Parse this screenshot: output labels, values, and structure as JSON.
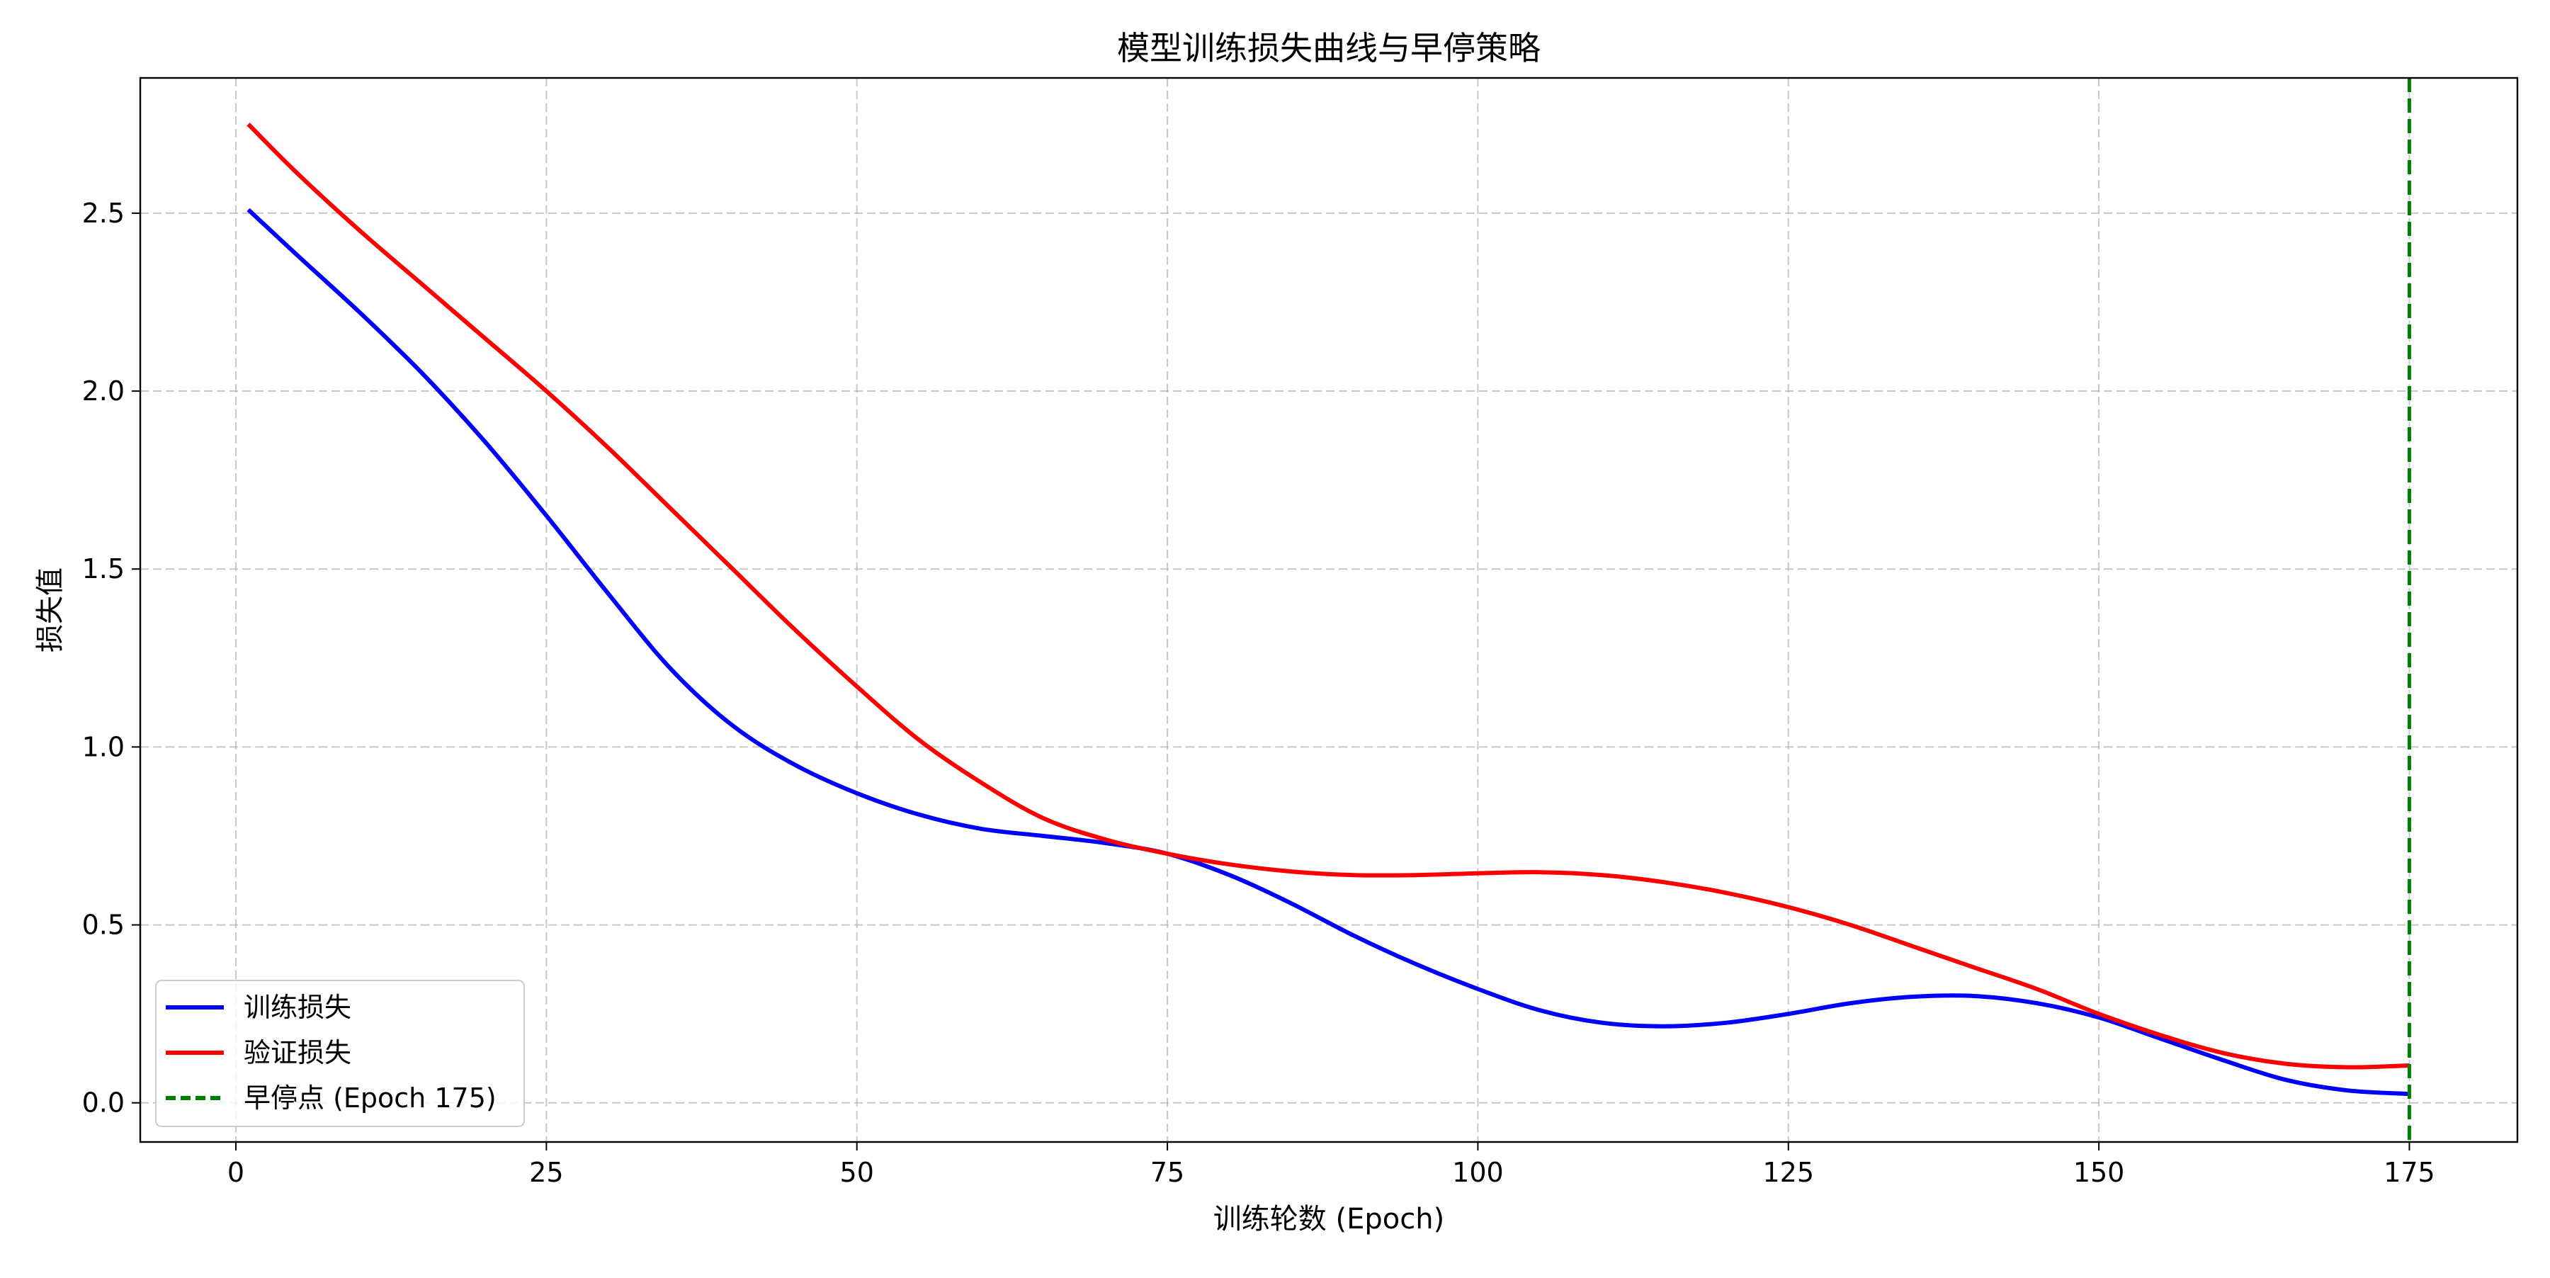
{
  "chart_data": {
    "type": "line",
    "title": "模型训练损失曲线与早停策略",
    "xlabel": "训练轮数 (Epoch)",
    "ylabel": "损失值",
    "xlim": [
      -7.7,
      183.7
    ],
    "ylim": [
      -0.11,
      2.88
    ],
    "xticks": [
      0,
      25,
      50,
      75,
      100,
      125,
      150,
      175
    ],
    "yticks": [
      0.0,
      0.5,
      1.0,
      1.5,
      2.0,
      2.5
    ],
    "grid": true,
    "legend_position": "lower-left",
    "colors": {
      "train": "#0000ff",
      "val": "#ff0000",
      "early_stop": "#008000",
      "grid": "#b0b0b0"
    },
    "series": [
      {
        "name": "训练损失",
        "key": "train",
        "style": "solid",
        "x": [
          1,
          5,
          10,
          15,
          20,
          25,
          30,
          35,
          40,
          45,
          50,
          55,
          60,
          65,
          70,
          75,
          80,
          85,
          90,
          95,
          100,
          105,
          110,
          115,
          120,
          125,
          130,
          135,
          140,
          145,
          150,
          155,
          160,
          165,
          170,
          175
        ],
        "y": [
          2.51,
          2.38,
          2.22,
          2.05,
          1.86,
          1.65,
          1.43,
          1.22,
          1.06,
          0.95,
          0.87,
          0.81,
          0.77,
          0.75,
          0.73,
          0.7,
          0.64,
          0.56,
          0.47,
          0.39,
          0.32,
          0.26,
          0.225,
          0.215,
          0.225,
          0.25,
          0.28,
          0.298,
          0.3,
          0.28,
          0.24,
          0.18,
          0.12,
          0.065,
          0.035,
          0.025
        ]
      },
      {
        "name": "验证损失",
        "key": "val",
        "style": "solid",
        "x": [
          1,
          5,
          10,
          15,
          20,
          25,
          30,
          35,
          40,
          45,
          50,
          55,
          60,
          65,
          70,
          75,
          80,
          85,
          90,
          95,
          100,
          105,
          110,
          115,
          120,
          125,
          130,
          135,
          140,
          145,
          150,
          155,
          160,
          165,
          170,
          175
        ],
        "y": [
          2.75,
          2.61,
          2.45,
          2.3,
          2.15,
          2.0,
          1.84,
          1.67,
          1.5,
          1.33,
          1.17,
          1.02,
          0.9,
          0.8,
          0.74,
          0.7,
          0.67,
          0.65,
          0.64,
          0.64,
          0.645,
          0.648,
          0.64,
          0.62,
          0.59,
          0.55,
          0.5,
          0.44,
          0.38,
          0.32,
          0.25,
          0.19,
          0.14,
          0.11,
          0.1,
          0.105
        ]
      }
    ],
    "early_stop": {
      "name": "早停点 (Epoch 175)",
      "x": 175
    }
  }
}
